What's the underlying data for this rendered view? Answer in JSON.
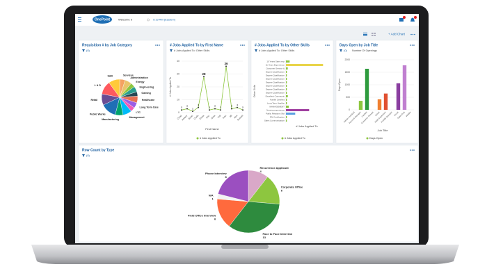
{
  "header": {
    "logo": "OnePoint",
    "welcome": "Welcome b",
    "time": "9:19 AM (Eastern)"
  },
  "toolbar": {
    "add_chart": "+ Add Chart"
  },
  "chart_data": [
    {
      "type": "pie",
      "title": "Requisition # by Job Category",
      "filter": "(0)",
      "categories": [
        "Services",
        "Administration",
        "Energy",
        "Engineering",
        "Gaming",
        "Healthcare",
        "Long Term Care",
        "LTC",
        "Management",
        "Manufacturing",
        "Public Works",
        "Retail",
        "L & D",
        "S&D"
      ],
      "values": [
        5,
        6,
        4,
        5,
        4,
        6,
        5,
        4,
        8,
        7,
        14,
        10,
        12,
        10
      ],
      "colors": [
        "#f4a261",
        "#e9c46a",
        "#8dc63f",
        "#2a9d8f",
        "#264653",
        "#e76f51",
        "#9b5de5",
        "#f15bb5",
        "#00bbf9",
        "#00a36c",
        "#1f6fb5",
        "#6a4c93",
        "#ff595e",
        "#ffca3a"
      ]
    },
    {
      "type": "line",
      "title": "# Jobs Applied To by First Name",
      "subtitle": "# Jobs Applied To: Other Skills",
      "categories": [
        "Chad",
        "Amber",
        "Brian",
        "Carla",
        "Dana",
        "Eric",
        "Gina",
        "Hal",
        "Ivan",
        "Jill",
        "Kim",
        "Russel"
      ],
      "series": [
        {
          "name": "# Jobs Applied To",
          "color": "#8dc63f",
          "values": [
            2,
            3,
            1,
            4,
            28,
            2,
            3,
            2,
            36,
            3,
            4,
            2
          ]
        }
      ],
      "ylim": [
        0,
        40
      ],
      "yticks": [
        0,
        10,
        20,
        30,
        40
      ],
      "ylabel": "# Jobs Applied To",
      "xlabel": "First Name"
    },
    {
      "type": "hbar",
      "title": "# Jobs Applied To by Other Skills",
      "subtitle": "# Jobs Applied To: Other Skills",
      "categories": [
        "10 Years Sales exp",
        "11 Years Experience",
        "Customer Service &",
        "Degree Qualification",
        "Degree Qualification",
        "Degree Qualification",
        "Degree Qualification",
        "Degree Qualification",
        "Degree Qualification",
        "Degree Qualification",
        "Excellent Communic",
        "Forklift Certified",
        "Long Term Healthc",
        "MANAGEMENT",
        "Nursing experience",
        "Public Relations Skil",
        "RN Certification",
        "Sales Communication"
      ],
      "series": [
        {
          "name": "# Jobs Applied To",
          "color": "#8dc63f",
          "values": [
            4,
            40,
            2,
            1,
            1,
            1,
            1,
            1,
            1,
            1,
            2,
            1,
            1,
            3,
            25,
            10,
            1,
            1
          ]
        }
      ],
      "colors": [
        "#8dc63f",
        "#e9d44a",
        "#8dc63f",
        "#8dc63f",
        "#8dc63f",
        "#8dc63f",
        "#8dc63f",
        "#8dc63f",
        "#8dc63f",
        "#8dc63f",
        "#8dc63f",
        "#8dc63f",
        "#8dc63f",
        "#8dc63f",
        "#a040a0",
        "#5aa0e0",
        "#8dc63f",
        "#8dc63f"
      ],
      "xlim": [
        0,
        45
      ],
      "ylabel": "Other Skills",
      "xlabel": "# Jobs Applied To"
    },
    {
      "type": "bar",
      "title": "Days Open by Job Title",
      "filter": "(0)",
      "subtitle": "Number Of Openings",
      "categories": [
        "Admin Assistant",
        "Account Manager",
        "Cashier",
        "Customer Service",
        "Driver",
        "Field Supervisor",
        "Forklift Operator",
        "Nurse",
        "Sales Rep",
        "Welder"
      ],
      "series": [
        {
          "name": "Days Open",
          "color": "#8dc63f",
          "values": [
            0,
            360,
            1640,
            0,
            420,
            650,
            0,
            1060,
            1780,
            0
          ]
        }
      ],
      "colors": [
        "#8dc63f",
        "#8dc63f",
        "#2e9b3e",
        "#8dc63f",
        "#f08030",
        "#e05030",
        "#8dc63f",
        "#8a3ea0",
        "#c080d0",
        "#8dc63f"
      ],
      "ylim": [
        0,
        2000
      ],
      "yticks": [
        0,
        500,
        1000,
        1500,
        2000
      ],
      "ylabel": "Days Open",
      "xlabel": "Job Title"
    },
    {
      "type": "pie",
      "title": "Row Count by Type",
      "filter": "(0)",
      "categories": [
        "Recurrence Applicant",
        "Corporate Office",
        "Face to Face Interview",
        "Field Office Interview",
        "N/A",
        "Phone Interview"
      ],
      "values": [
        4,
        6,
        13,
        6,
        1,
        8
      ],
      "colors": [
        "#d9a8c8",
        "#8dc63f",
        "#2e8b3e",
        "#ff6a3d",
        "#f2f2f2",
        "#9b4fc0"
      ]
    }
  ]
}
